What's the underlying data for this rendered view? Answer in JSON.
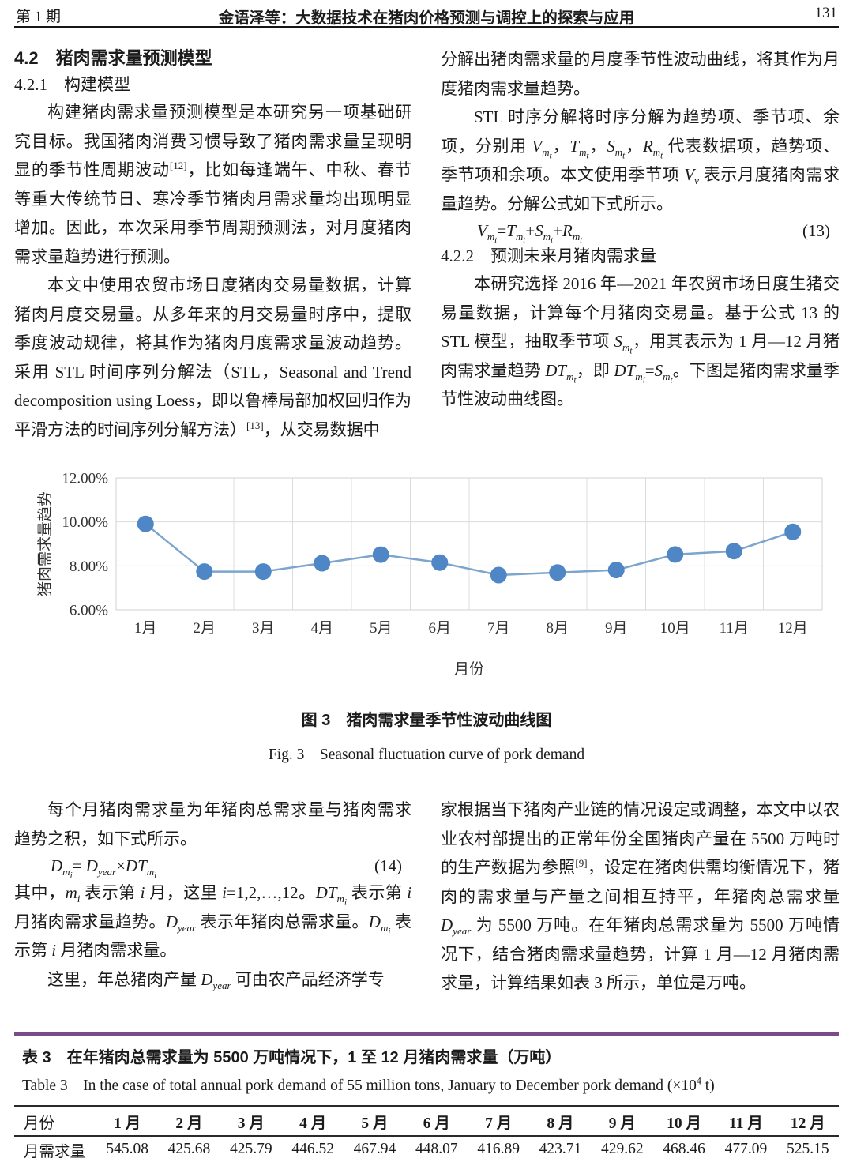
{
  "header": {
    "issue": "第 1 期",
    "running_title": "金语泽等：大数据技术在猪肉价格预测与调控上的探索与应用",
    "page_no": "131"
  },
  "left_top": {
    "h42": "4.2　猪肉需求量预测模型",
    "h421": "4.2.1　构建模型",
    "p1": [
      "构建猪肉需求量预测模型是本研究另一项基础研究目标。我国猪肉消费习惯导致了猪肉需求量呈现明显的季节性周期波动",
      {
        "sup": "[12]"
      },
      "，比如每逢端午、中秋、春节等重大传统节日、寒冷季节猪肉月需求量均出现明显增加。因此，本次采用季节周期预测法，对月度猪肉需求量趋势进行预测。"
    ],
    "p2": [
      "本文中使用农贸市场日度猪肉交易量数据，计算猪肉月度交易量。从多年来的月交易量时序中，提取季度波动规律，将其作为猪肉月度需求量波动趋势。采用 STL 时间序列分解法（STL，Seasonal and Trend decomposition using Loess，即以鲁棒局部加权回归作为平滑方法的时间序列分解方法）",
      {
        "sup": "[13]"
      },
      "，从交易数据中"
    ]
  },
  "right_top": {
    "p_cont": [
      "分解出猪肉需求量的月度季节性波动曲线，将其作为月度猪肉需求量趋势。"
    ],
    "p_stl": [
      "STL 时序分解将时序分解为趋势项、季节项、余项，分别用 ",
      {
        "i": "V"
      },
      {
        "sub": [
          {
            "i": "m"
          },
          {
            "sub": [
              {
                "i": "t"
              }
            ]
          }
        ]
      },
      "，",
      {
        "i": "T"
      },
      {
        "sub": [
          {
            "i": "m"
          },
          {
            "sub": [
              {
                "i": "t"
              }
            ]
          }
        ]
      },
      "，",
      {
        "i": "S"
      },
      {
        "sub": [
          {
            "i": "m"
          },
          {
            "sub": [
              {
                "i": "t"
              }
            ]
          }
        ]
      },
      "，",
      {
        "i": "R"
      },
      {
        "sub": [
          {
            "i": "m"
          },
          {
            "sub": [
              {
                "i": "t"
              }
            ]
          }
        ]
      },
      " 代表数据项，趋势项、季节项和余项。本文使用季节项 ",
      {
        "i": "V"
      },
      {
        "sub": [
          {
            "i": "v"
          }
        ]
      },
      " 表示月度猪肉需求量趋势。分解公式如下式所示。"
    ],
    "f13_body": [
      {
        "i": "V"
      },
      {
        "sub": [
          {
            "i": "m"
          },
          {
            "sub": [
              {
                "i": "t"
              }
            ]
          }
        ]
      },
      "=",
      {
        "i": "T"
      },
      {
        "sub": [
          {
            "i": "m"
          },
          {
            "sub": [
              {
                "i": "t"
              }
            ]
          }
        ]
      },
      "+",
      {
        "i": "S"
      },
      {
        "sub": [
          {
            "i": "m"
          },
          {
            "sub": [
              {
                "i": "t"
              }
            ]
          }
        ]
      },
      "+",
      {
        "i": "R"
      },
      {
        "sub": [
          {
            "i": "m"
          },
          {
            "sub": [
              {
                "i": "t"
              }
            ]
          }
        ]
      }
    ],
    "f13_num": "(13)",
    "h422": "4.2.2　预测未来月猪肉需求量",
    "p422": [
      "本研究选择 2016 年—2021 年农贸市场日度生猪交易量数据，计算每个月猪肉交易量。基于公式 13 的 STL 模型，抽取季节项 ",
      {
        "i": "S"
      },
      {
        "sub": [
          {
            "i": "m"
          },
          {
            "sub": [
              {
                "i": "t"
              }
            ]
          }
        ]
      },
      "，用其表示为 1 月—12 月猪肉需求量趋势 ",
      {
        "i": "DT"
      },
      {
        "sub": [
          {
            "i": "m"
          },
          {
            "sub": [
              {
                "i": "t"
              }
            ]
          }
        ]
      },
      "，即 ",
      {
        "i": "DT"
      },
      {
        "sub": [
          {
            "i": "m"
          },
          {
            "sub": [
              {
                "i": "i"
              }
            ]
          }
        ]
      },
      "=",
      {
        "i": "S"
      },
      {
        "sub": [
          {
            "i": "m"
          },
          {
            "sub": [
              {
                "i": "t"
              }
            ]
          }
        ]
      },
      "。下图是猪肉需求量季节性波动曲线图。"
    ]
  },
  "chart_data": {
    "type": "line",
    "categories": [
      "1月",
      "2月",
      "3月",
      "4月",
      "5月",
      "6月",
      "7月",
      "8月",
      "9月",
      "10月",
      "11月",
      "12月"
    ],
    "values": [
      9.91,
      7.74,
      7.74,
      8.12,
      8.51,
      8.15,
      7.58,
      7.7,
      7.81,
      8.52,
      8.67,
      9.55
    ],
    "unit": "%",
    "title": "",
    "xlabel": "月份",
    "ylabel": "猪肉需求量趋势",
    "ylim": [
      6,
      12
    ],
    "yticks": [
      "6.00%",
      "8.00%",
      "10.00%",
      "12.00%"
    ],
    "grid": true,
    "legend": "none",
    "marker_color": "#4e86c6",
    "line_color": "#7ca5ce",
    "grid_color": "#dcdcdc"
  },
  "figure": {
    "caption_zh": "图 3　猪肉需求量季节性波动曲线图",
    "caption_en": "Fig. 3　Seasonal fluctuation curve of pork demand"
  },
  "left_bottom": {
    "p3": [
      "每个月猪肉需求量为年猪肉总需求量与猪肉需求趋势之积，如下式所示。"
    ],
    "f14_body": [
      {
        "i": "D"
      },
      {
        "sub": [
          {
            "i": "m"
          },
          {
            "sub": [
              {
                "i": "i"
              }
            ]
          }
        ]
      },
      "= ",
      {
        "i": "D"
      },
      {
        "sub": [
          {
            "i": "year"
          }
        ]
      },
      "×",
      {
        "i": "DT"
      },
      {
        "sub": [
          {
            "i": "m"
          },
          {
            "sub": [
              {
                "i": "i"
              }
            ]
          }
        ]
      }
    ],
    "f14_num": "(14)",
    "p4": [
      "其中，",
      {
        "i": "m"
      },
      {
        "sub": [
          {
            "i": "i"
          }
        ]
      },
      " 表示第 ",
      {
        "i": "i"
      },
      " 月，这里 ",
      {
        "i": "i"
      },
      "=1,2,…,12。",
      {
        "i": "DT"
      },
      {
        "sub": [
          {
            "i": "m"
          },
          {
            "sub": [
              {
                "i": "i"
              }
            ]
          }
        ]
      },
      " 表示第 ",
      {
        "i": "i"
      },
      " 月猪肉需求量趋势。",
      {
        "i": "D"
      },
      {
        "sub": [
          {
            "i": "year"
          }
        ]
      },
      " 表示年猪肉总需求量。",
      {
        "i": "D"
      },
      {
        "sub": [
          {
            "i": "m"
          },
          {
            "sub": [
              {
                "i": "i"
              }
            ]
          }
        ]
      },
      " 表示第 ",
      {
        "i": "i"
      },
      " 月猪肉需求量。"
    ],
    "p5": [
      "这里，年总猪肉产量 ",
      {
        "i": "D"
      },
      {
        "sub": [
          {
            "i": "year"
          }
        ]
      },
      " 可由农产品经济学专"
    ]
  },
  "right_bottom": {
    "p6": [
      "家根据当下猪肉产业链的情况设定或调整，本文中以农业农村部提出的正常年份全国猪肉产量在 5500 万吨时的生产数据为参照",
      {
        "sup": "[9]"
      },
      "，设定在猪肉供需均衡情况下，猪肉的需求量与产量之间相互持平，年猪肉总需求量 ",
      {
        "i": "D"
      },
      {
        "sub": [
          {
            "i": "year"
          }
        ]
      },
      " 为 5500 万吨。在年猪肉总需求量为 5500 万吨情况下，结合猪肉需求量趋势，计算 1 月—12 月猪肉需求量，计算结果如表 3 所示，单位是万吨。"
    ]
  },
  "table": {
    "accent_color": "#7b4a8c",
    "caption_zh": "表 3　在年猪肉总需求量为 5500 万吨情况下，1 至 12 月猪肉需求量（万吨）",
    "caption_en": [
      "Table 3　In the case of total annual pork demand of 55 million tons, January to December pork demand (×10",
      {
        "sup": "4"
      },
      " t)"
    ],
    "col0_header": "月份",
    "months": [
      "1 月",
      "2 月",
      "3 月",
      "4 月",
      "5 月",
      "6 月",
      "7 月",
      "8 月",
      "9 月",
      "10 月",
      "11 月",
      "12 月"
    ],
    "row_label": "月需求量",
    "values": [
      "545.08",
      "425.68",
      "425.79",
      "446.52",
      "467.94",
      "448.07",
      "416.89",
      "423.71",
      "429.62",
      "468.46",
      "477.09",
      "525.15"
    ]
  }
}
